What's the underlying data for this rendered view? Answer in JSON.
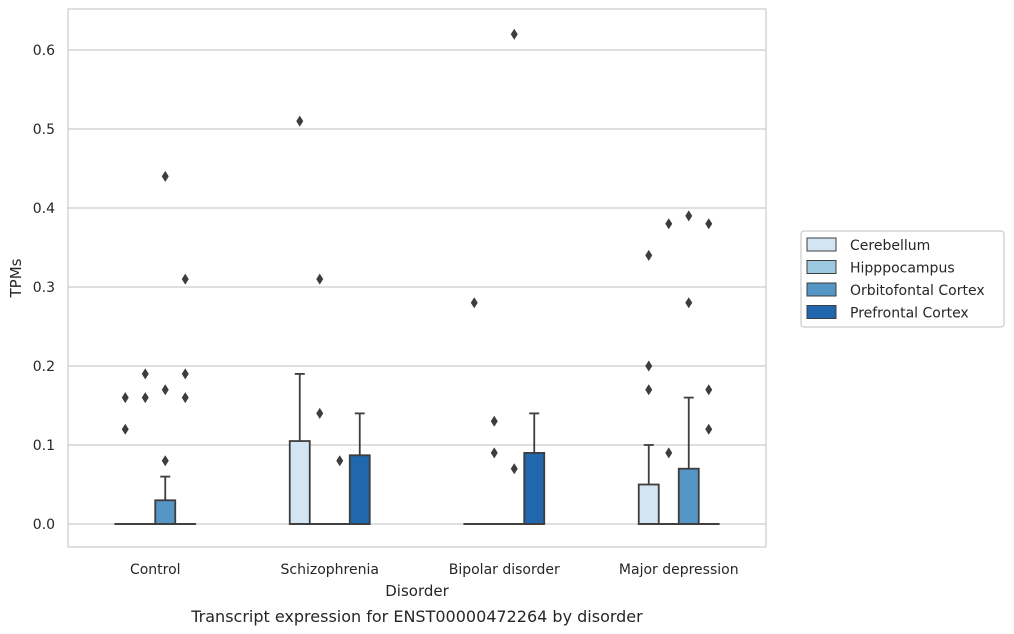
{
  "chart_data": {
    "type": "boxplot",
    "title": "",
    "caption": "Transcript expression for ENST00000472264 by disorder",
    "xlabel": "Disorder",
    "ylabel": "TPMs",
    "ylim": [
      -0.03,
      0.655
    ],
    "yticks": [
      0.0,
      0.1,
      0.2,
      0.3,
      0.4,
      0.5,
      0.6
    ],
    "ytick_labels": [
      "0.0",
      "0.1",
      "0.2",
      "0.3",
      "0.4",
      "0.5",
      "0.6"
    ],
    "grid": "horizontal",
    "legend_position": "right",
    "categories": [
      "Control",
      "Schizophrenia",
      "Bipolar disorder",
      "Major depression"
    ],
    "series": [
      {
        "name": "Cerebellum",
        "color": "#d3e4f3",
        "boxes": [
          {
            "q1": 0,
            "median": 0,
            "q3": 0,
            "whisker_low": 0,
            "whisker_high": 0,
            "outliers": [
              0.12,
              0.16
            ]
          },
          {
            "q1": 0,
            "median": 0,
            "q3": 0.105,
            "whisker_low": 0,
            "whisker_high": 0.19,
            "outliers": [
              0.51
            ]
          },
          {
            "q1": 0,
            "median": 0,
            "q3": 0,
            "whisker_low": 0,
            "whisker_high": 0,
            "outliers": [
              0.28
            ]
          },
          {
            "q1": 0,
            "median": 0,
            "q3": 0.05,
            "whisker_low": 0,
            "whisker_high": 0.1,
            "outliers": [
              0.17,
              0.2,
              0.34
            ]
          }
        ]
      },
      {
        "name": "Hipppocampus",
        "color": "#9ecae1",
        "boxes": [
          {
            "q1": 0,
            "median": 0,
            "q3": 0,
            "whisker_low": 0,
            "whisker_high": 0,
            "outliers": [
              0.16,
              0.19
            ]
          },
          {
            "q1": 0,
            "median": 0,
            "q3": 0,
            "whisker_low": 0,
            "whisker_high": 0,
            "outliers": [
              0.14,
              0.31
            ]
          },
          {
            "q1": 0,
            "median": 0,
            "q3": 0,
            "whisker_low": 0,
            "whisker_high": 0,
            "outliers": [
              0.09,
              0.13
            ]
          },
          {
            "q1": 0,
            "median": 0,
            "q3": 0,
            "whisker_low": 0,
            "whisker_high": 0,
            "outliers": [
              0.09,
              0.38
            ]
          }
        ]
      },
      {
        "name": "Orbitofontal Cortex",
        "color": "#5596c6",
        "boxes": [
          {
            "q1": 0,
            "median": 0,
            "q3": 0.03,
            "whisker_low": 0,
            "whisker_high": 0.06,
            "outliers": [
              0.08,
              0.17,
              0.44
            ]
          },
          {
            "q1": 0,
            "median": 0,
            "q3": 0,
            "whisker_low": 0,
            "whisker_high": 0,
            "outliers": [
              0.08
            ]
          },
          {
            "q1": 0,
            "median": 0,
            "q3": 0,
            "whisker_low": 0,
            "whisker_high": 0,
            "outliers": [
              0.07,
              0.62
            ]
          },
          {
            "q1": 0,
            "median": 0,
            "q3": 0.07,
            "whisker_low": 0,
            "whisker_high": 0.16,
            "outliers": [
              0.28,
              0.39
            ]
          }
        ]
      },
      {
        "name": "Prefrontal Cortex",
        "color": "#2167ad",
        "boxes": [
          {
            "q1": 0,
            "median": 0,
            "q3": 0,
            "whisker_low": 0,
            "whisker_high": 0,
            "outliers": [
              0.16,
              0.19,
              0.31
            ]
          },
          {
            "q1": 0,
            "median": 0,
            "q3": 0.087,
            "whisker_low": 0,
            "whisker_high": 0.14,
            "outliers": []
          },
          {
            "q1": 0,
            "median": 0,
            "q3": 0.09,
            "whisker_low": 0,
            "whisker_high": 0.14,
            "outliers": []
          },
          {
            "q1": 0,
            "median": 0,
            "q3": 0,
            "whisker_low": 0,
            "whisker_high": 0,
            "outliers": [
              0.12,
              0.17,
              0.38
            ]
          }
        ]
      }
    ]
  }
}
